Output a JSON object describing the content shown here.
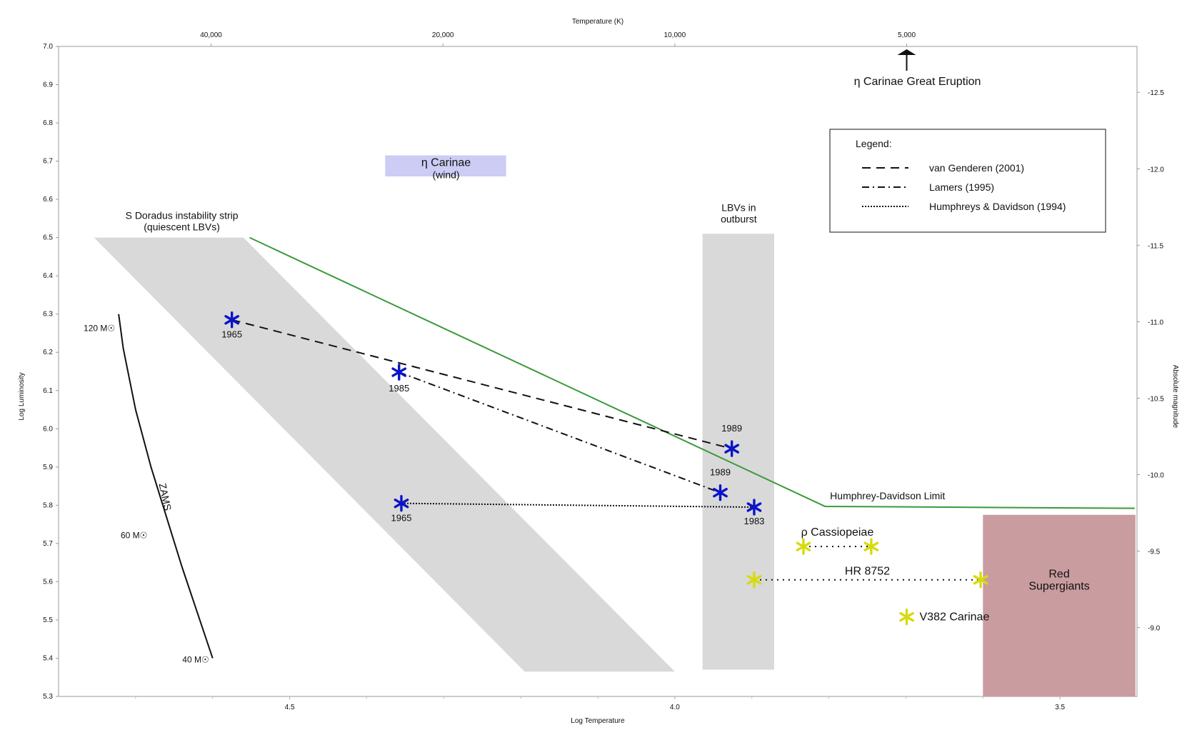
{
  "chart_data": {
    "type": "scatter",
    "title": "",
    "xlabel": "Log Temperature",
    "ylabel": "Log Luminosity",
    "top_axis_label": "Temperature (K)",
    "right_axis_label": "Absolute magnitude",
    "xlim": [
      4.8,
      3.4
    ],
    "ylim": [
      5.3,
      7.0
    ],
    "x_ticks": [
      4.5,
      4.0,
      3.5
    ],
    "y_ticks": [
      5.3,
      5.4,
      5.5,
      5.6,
      5.7,
      5.8,
      5.9,
      6.0,
      6.1,
      6.2,
      6.3,
      6.4,
      6.5,
      6.6,
      6.7,
      6.8,
      6.9,
      7.0
    ],
    "y_tick_labels": [
      "5.3",
      "5.4",
      "5.5",
      "5.6",
      "5.7",
      "5.8",
      "5.9",
      "6.0",
      "6.1",
      "6.2",
      "6.3",
      "6.4",
      "6.5",
      "6.6",
      "6.7",
      "6.8",
      "6.9",
      "7.0"
    ],
    "top_ticks": [
      {
        "logT": 4.602,
        "label": "40,000"
      },
      {
        "logT": 4.301,
        "label": "20,000"
      },
      {
        "logT": 4.0,
        "label": "10,000"
      },
      {
        "logT": 3.699,
        "label": "5,000"
      }
    ],
    "right_ticks": [
      {
        "logL": 6.88,
        "label": "-12.5"
      },
      {
        "logL": 6.68,
        "label": "-12.0"
      },
      {
        "logL": 6.48,
        "label": "-11.5"
      },
      {
        "logL": 6.28,
        "label": "-11.0"
      },
      {
        "logL": 6.08,
        "label": "-10.5"
      },
      {
        "logL": 5.88,
        "label": "-10.0"
      },
      {
        "logL": 5.68,
        "label": "-9.5"
      },
      {
        "logL": 5.48,
        "label": "-9.0"
      }
    ],
    "regions": [
      {
        "name": "s-doradus-strip",
        "label_lines": [
          "S Doradus instability strip",
          "(quiescent LBVs)"
        ],
        "polygon": [
          [
            4.754,
            6.5
          ],
          [
            4.56,
            6.5
          ],
          [
            4.0,
            5.365
          ],
          [
            4.195,
            5.365
          ]
        ],
        "color": "#d9d9d9"
      },
      {
        "name": "lbv-outburst",
        "label_lines": [
          "LBVs in",
          "outburst"
        ],
        "polygon": [
          [
            3.964,
            6.51
          ],
          [
            3.871,
            6.51
          ],
          [
            3.871,
            5.37
          ],
          [
            3.964,
            5.37
          ]
        ],
        "color": "#d9d9d9"
      },
      {
        "name": "eta-carinae-wind",
        "label_lines": [
          "η Carinae",
          "(wind)"
        ],
        "polygon": [
          [
            4.376,
            6.715
          ],
          [
            4.219,
            6.715
          ],
          [
            4.219,
            6.66
          ],
          [
            4.376,
            6.66
          ]
        ],
        "color": "#ccccf4"
      },
      {
        "name": "red-supergiants",
        "label_lines": [
          "Red",
          "Supergiants"
        ],
        "polygon": [
          [
            3.6,
            5.775
          ],
          [
            3.402,
            5.775
          ],
          [
            3.402,
            5.3
          ],
          [
            3.6,
            5.3
          ]
        ],
        "color": "#c99ca0"
      }
    ],
    "humphreys_davidson_limit": {
      "label": "Humphrey-Davidson Limit",
      "color": "#3a9a3a",
      "points": [
        [
          4.552,
          6.5
        ],
        [
          3.805,
          5.797
        ],
        [
          3.403,
          5.792
        ]
      ]
    },
    "zams": {
      "label": "ZAMS",
      "points": [
        [
          4.722,
          6.3
        ],
        [
          4.716,
          6.21
        ],
        [
          4.7,
          6.05
        ],
        [
          4.68,
          5.9
        ],
        [
          4.66,
          5.77
        ],
        [
          4.64,
          5.64
        ],
        [
          4.62,
          5.52
        ],
        [
          4.6,
          5.4
        ]
      ],
      "mass_labels": [
        {
          "text": "120 M☉",
          "logT": 4.722,
          "logL": 6.265
        },
        {
          "text": "60 M☉",
          "logT": 4.68,
          "logL": 5.723
        },
        {
          "text": "40 M☉",
          "logT": 4.6,
          "logL": 5.398
        }
      ]
    },
    "series": [
      {
        "name": "van Genderen (2001)",
        "style": "dashed",
        "color": "#111111",
        "points": [
          {
            "x": 4.575,
            "y": 6.285,
            "label": "1965"
          },
          {
            "x": 3.926,
            "y": 5.948,
            "label": "1989"
          }
        ]
      },
      {
        "name": "Lamers (1995)",
        "style": "dashdot",
        "color": "#111111",
        "points": [
          {
            "x": 4.358,
            "y": 6.148,
            "label": "1985"
          },
          {
            "x": 3.941,
            "y": 5.833,
            "label": "1989"
          }
        ]
      },
      {
        "name": "Humphreys & Davidson (1994)",
        "style": "dotted",
        "color": "#111111",
        "points": [
          {
            "x": 4.355,
            "y": 5.805,
            "label": "1965"
          },
          {
            "x": 3.897,
            "y": 5.795,
            "label": "1983"
          }
        ]
      }
    ],
    "comparison_stars": [
      {
        "name": "ρ Cassiopeiae",
        "points": [
          [
            3.833,
            5.692
          ],
          [
            3.745,
            5.692
          ]
        ],
        "connected": true
      },
      {
        "name": "HR 8752",
        "points": [
          [
            3.897,
            5.605
          ],
          [
            3.603,
            5.605
          ]
        ],
        "connected": true
      },
      {
        "name": "V382 Carinae",
        "points": [
          [
            3.699,
            5.508
          ]
        ],
        "connected": false
      }
    ],
    "annotation": {
      "text": "η Carinae Great Eruption",
      "logT": 3.699,
      "direction": "up"
    },
    "legend": {
      "title": "Legend:",
      "placement": "top-right"
    }
  }
}
